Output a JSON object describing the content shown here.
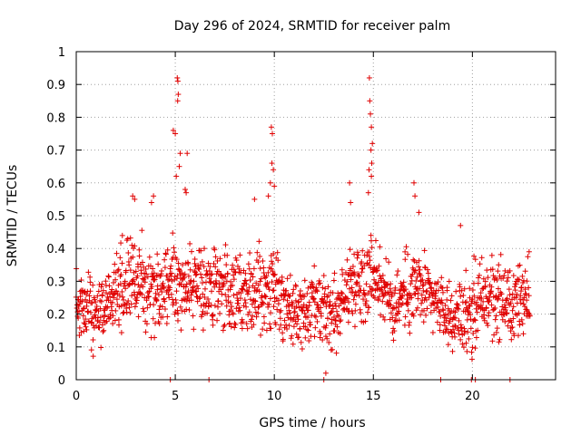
{
  "chart_data": {
    "type": "scatter",
    "title": "Day 296 of 2024, SRMTID for receiver palm",
    "xlabel": "GPS time / hours",
    "ylabel": "SRMTID / TECUs",
    "xlim": [
      0,
      24.2
    ],
    "ylim": [
      0,
      1
    ],
    "x_ticks": [
      0,
      5,
      10,
      15,
      20
    ],
    "y_ticks": [
      0,
      0.1,
      0.2,
      0.3,
      0.4,
      0.5,
      0.6,
      0.7,
      0.8,
      0.9,
      1
    ],
    "x_tick_labels": [
      "0",
      "5",
      "10",
      "15",
      "20"
    ],
    "y_tick_labels": [
      "0",
      "0.1",
      "0.2",
      "0.3",
      "0.4",
      "0.5",
      "0.6",
      "0.7",
      "0.8",
      "0.9",
      "1"
    ],
    "grid": true,
    "marker": "+",
    "color": "#e00000",
    "x_range_of_samples": [
      0,
      22.9
    ],
    "series": [
      {
        "name": "SRMTID",
        "note": "dense cloud of ~1600 samples; baseline mostly 0.1-0.45 TECU",
        "baseline_envelope": [
          {
            "x": 0.0,
            "low": 0.11,
            "high": 0.4
          },
          {
            "x": 1.0,
            "low": 0.08,
            "high": 0.3
          },
          {
            "x": 2.0,
            "low": 0.1,
            "high": 0.42
          },
          {
            "x": 3.0,
            "low": 0.14,
            "high": 0.48
          },
          {
            "x": 4.0,
            "low": 0.1,
            "high": 0.45
          },
          {
            "x": 5.0,
            "low": 0.15,
            "high": 0.48
          },
          {
            "x": 6.0,
            "low": 0.13,
            "high": 0.42
          },
          {
            "x": 7.0,
            "low": 0.12,
            "high": 0.44
          },
          {
            "x": 8.0,
            "low": 0.11,
            "high": 0.4
          },
          {
            "x": 9.0,
            "low": 0.12,
            "high": 0.43
          },
          {
            "x": 10.0,
            "low": 0.1,
            "high": 0.45
          },
          {
            "x": 11.0,
            "low": 0.06,
            "high": 0.32
          },
          {
            "x": 12.0,
            "low": 0.08,
            "high": 0.34
          },
          {
            "x": 13.0,
            "low": 0.05,
            "high": 0.33
          },
          {
            "x": 14.0,
            "low": 0.15,
            "high": 0.44
          },
          {
            "x": 15.0,
            "low": 0.18,
            "high": 0.48
          },
          {
            "x": 16.0,
            "low": 0.1,
            "high": 0.35
          },
          {
            "x": 17.0,
            "low": 0.12,
            "high": 0.45
          },
          {
            "x": 18.0,
            "low": 0.14,
            "high": 0.35
          },
          {
            "x": 19.0,
            "low": 0.08,
            "high": 0.3
          },
          {
            "x": 20.0,
            "low": 0.04,
            "high": 0.38
          },
          {
            "x": 21.0,
            "low": 0.1,
            "high": 0.43
          },
          {
            "x": 22.0,
            "low": 0.09,
            "high": 0.35
          },
          {
            "x": 22.9,
            "low": 0.12,
            "high": 0.45
          }
        ],
        "outliers": [
          {
            "x": 2.85,
            "y": 0.56
          },
          {
            "x": 2.95,
            "y": 0.55
          },
          {
            "x": 3.8,
            "y": 0.54
          },
          {
            "x": 3.9,
            "y": 0.56
          },
          {
            "x": 5.1,
            "y": 0.92
          },
          {
            "x": 5.13,
            "y": 0.91
          },
          {
            "x": 5.15,
            "y": 0.87
          },
          {
            "x": 5.12,
            "y": 0.85
          },
          {
            "x": 4.9,
            "y": 0.76
          },
          {
            "x": 5.0,
            "y": 0.75
          },
          {
            "x": 5.25,
            "y": 0.69
          },
          {
            "x": 5.6,
            "y": 0.69
          },
          {
            "x": 5.2,
            "y": 0.65
          },
          {
            "x": 5.05,
            "y": 0.62
          },
          {
            "x": 5.5,
            "y": 0.58
          },
          {
            "x": 5.55,
            "y": 0.57
          },
          {
            "x": 9.0,
            "y": 0.55
          },
          {
            "x": 9.7,
            "y": 0.56
          },
          {
            "x": 9.85,
            "y": 0.77
          },
          {
            "x": 9.9,
            "y": 0.75
          },
          {
            "x": 9.88,
            "y": 0.66
          },
          {
            "x": 9.95,
            "y": 0.64
          },
          {
            "x": 10.0,
            "y": 0.59
          },
          {
            "x": 9.8,
            "y": 0.6
          },
          {
            "x": 13.8,
            "y": 0.6
          },
          {
            "x": 13.85,
            "y": 0.54
          },
          {
            "x": 14.8,
            "y": 0.92
          },
          {
            "x": 14.82,
            "y": 0.85
          },
          {
            "x": 14.85,
            "y": 0.81
          },
          {
            "x": 14.9,
            "y": 0.77
          },
          {
            "x": 14.95,
            "y": 0.72
          },
          {
            "x": 14.88,
            "y": 0.7
          },
          {
            "x": 14.92,
            "y": 0.66
          },
          {
            "x": 14.78,
            "y": 0.64
          },
          {
            "x": 14.9,
            "y": 0.62
          },
          {
            "x": 14.75,
            "y": 0.57
          },
          {
            "x": 17.05,
            "y": 0.6
          },
          {
            "x": 17.1,
            "y": 0.56
          },
          {
            "x": 17.3,
            "y": 0.51
          },
          {
            "x": 19.4,
            "y": 0.47
          },
          {
            "x": 4.75,
            "y": 0.0
          },
          {
            "x": 6.7,
            "y": 0.0
          },
          {
            "x": 12.5,
            "y": 0.0
          },
          {
            "x": 12.6,
            "y": 0.02
          },
          {
            "x": 18.4,
            "y": 0.0
          },
          {
            "x": 19.95,
            "y": 0.0
          },
          {
            "x": 20.15,
            "y": 0.0
          },
          {
            "x": 21.9,
            "y": 0.0
          }
        ]
      }
    ]
  }
}
